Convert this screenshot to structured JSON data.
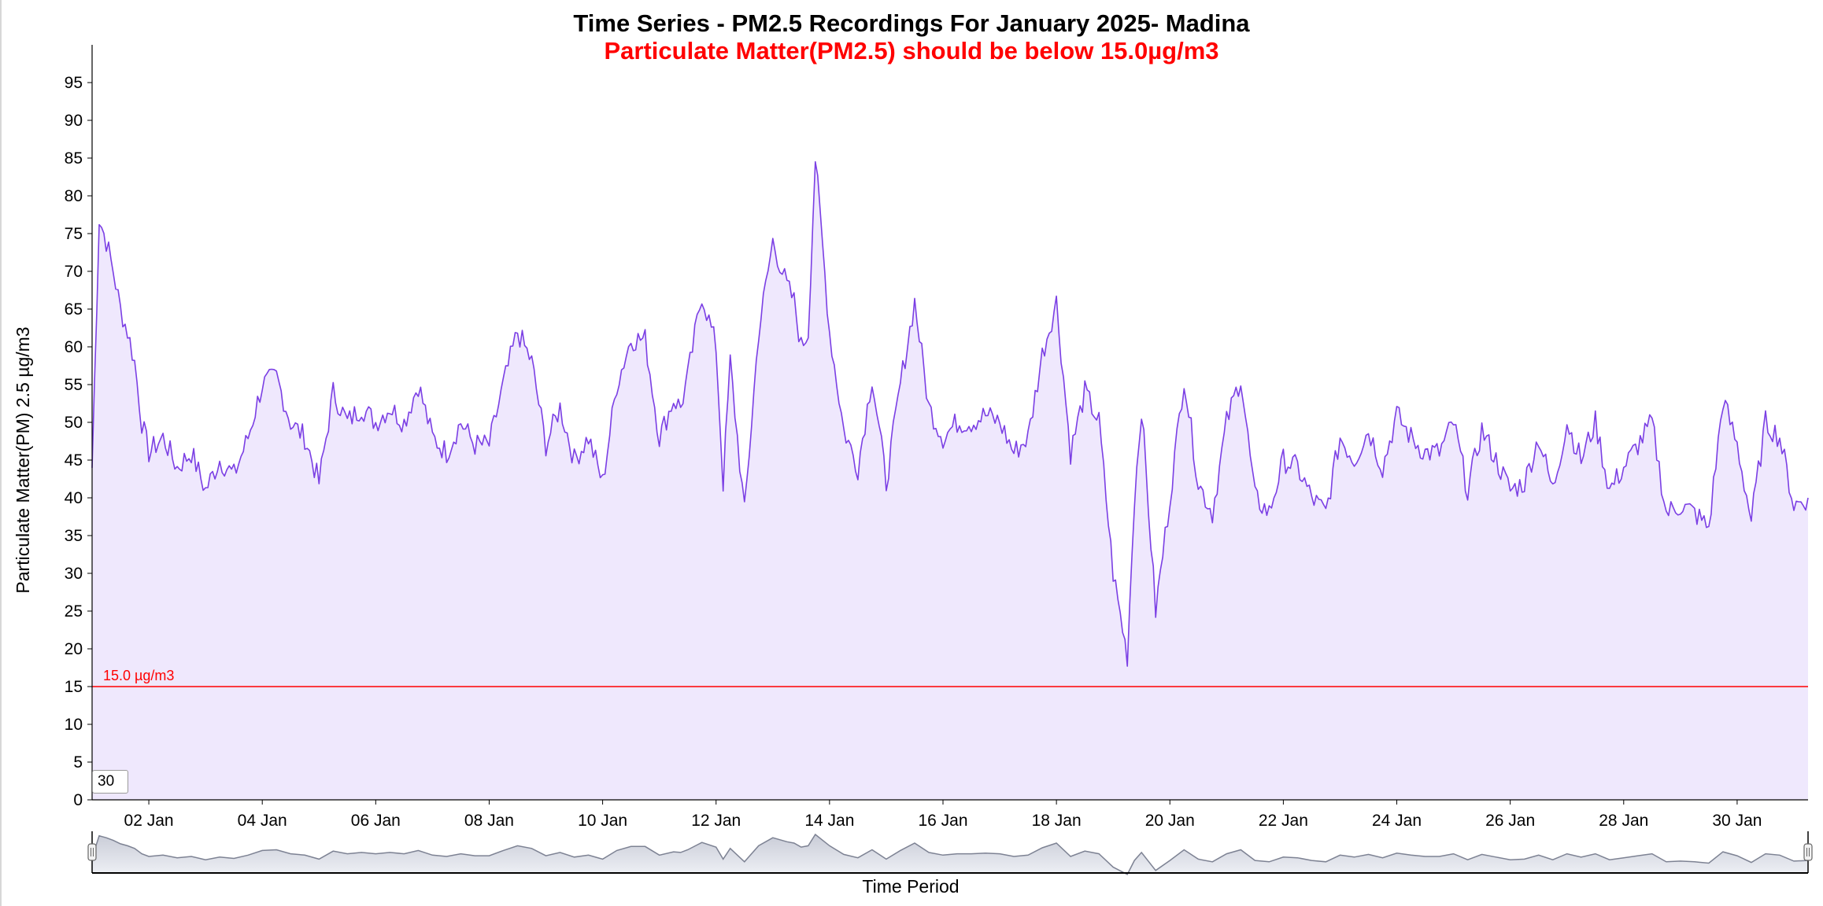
{
  "title": "Time Series - PM2.5 Recordings For January 2025- Madina",
  "subtitle": "Particulate Matter(PM2.5) should be below 15.0µg/m3",
  "smoothing": {
    "value": "30"
  },
  "chart_data": {
    "type": "area",
    "title": "Time Series - PM2.5 Recordings For January 2025- Madina",
    "subtitle": "Particulate Matter(PM2.5) should be below 15.0µg/m3",
    "xlabel": "Time Period",
    "ylabel": "Particulate Matter(PM) 2.5 µg/m3",
    "xlim": [
      "2025-01-01",
      "2025-01-31T06:00"
    ],
    "ylim": [
      0,
      100
    ],
    "yticks": [
      0,
      5,
      10,
      15,
      20,
      25,
      30,
      35,
      40,
      45,
      50,
      55,
      60,
      65,
      70,
      75,
      80,
      85,
      90,
      95
    ],
    "xticks": [
      "02 Jan",
      "04 Jan",
      "06 Jan",
      "08 Jan",
      "10 Jan",
      "12 Jan",
      "14 Jan",
      "16 Jan",
      "18 Jan",
      "20 Jan",
      "22 Jan",
      "24 Jan",
      "26 Jan",
      "28 Jan",
      "30 Jan"
    ],
    "grid": false,
    "threshold": {
      "value": 15.0,
      "label": "15.0 µg/m3",
      "color": "#ff0000"
    },
    "series": [
      {
        "color": "#7b3fe4",
        "fill": "#efe8fd",
        "x": [
          "2025-01-01T00:00",
          "2025-01-01T03:00",
          "2025-01-01T06:00",
          "2025-01-01T09:00",
          "2025-01-01T12:00",
          "2025-01-01T15:00",
          "2025-01-01T18:00",
          "2025-01-01T21:00",
          "2025-01-02T00:00",
          "2025-01-02T06:00",
          "2025-01-02T12:00",
          "2025-01-02T18:00",
          "2025-01-03T00:00",
          "2025-01-03T06:00",
          "2025-01-03T12:00",
          "2025-01-03T18:00",
          "2025-01-04T00:00",
          "2025-01-04T06:00",
          "2025-01-04T12:00",
          "2025-01-04T18:00",
          "2025-01-05T00:00",
          "2025-01-05T06:00",
          "2025-01-05T12:00",
          "2025-01-05T18:00",
          "2025-01-06T00:00",
          "2025-01-06T06:00",
          "2025-01-06T12:00",
          "2025-01-06T18:00",
          "2025-01-07T00:00",
          "2025-01-07T06:00",
          "2025-01-07T12:00",
          "2025-01-07T18:00",
          "2025-01-08T00:00",
          "2025-01-08T06:00",
          "2025-01-08T12:00",
          "2025-01-08T18:00",
          "2025-01-09T00:00",
          "2025-01-09T06:00",
          "2025-01-09T12:00",
          "2025-01-09T18:00",
          "2025-01-10T00:00",
          "2025-01-10T06:00",
          "2025-01-10T12:00",
          "2025-01-10T18:00",
          "2025-01-11T00:00",
          "2025-01-11T06:00",
          "2025-01-11T09:00",
          "2025-01-11T12:00",
          "2025-01-11T18:00",
          "2025-01-12T00:00",
          "2025-01-12T03:00",
          "2025-01-12T06:00",
          "2025-01-12T12:00",
          "2025-01-12T18:00",
          "2025-01-13T00:00",
          "2025-01-13T06:00",
          "2025-01-13T09:00",
          "2025-01-13T12:00",
          "2025-01-13T15:00",
          "2025-01-13T18:00",
          "2025-01-14T00:00",
          "2025-01-14T06:00",
          "2025-01-14T12:00",
          "2025-01-14T18:00",
          "2025-01-15T00:00",
          "2025-01-15T06:00",
          "2025-01-15T12:00",
          "2025-01-15T18:00",
          "2025-01-16T00:00",
          "2025-01-16T06:00",
          "2025-01-16T12:00",
          "2025-01-16T18:00",
          "2025-01-17T00:00",
          "2025-01-17T06:00",
          "2025-01-17T12:00",
          "2025-01-17T18:00",
          "2025-01-18T00:00",
          "2025-01-18T06:00",
          "2025-01-18T12:00",
          "2025-01-18T18:00",
          "2025-01-19T00:00",
          "2025-01-19T06:00",
          "2025-01-19T09:00",
          "2025-01-19T12:00",
          "2025-01-19T18:00",
          "2025-01-20T00:00",
          "2025-01-20T06:00",
          "2025-01-20T12:00",
          "2025-01-20T18:00",
          "2025-01-21T00:00",
          "2025-01-21T06:00",
          "2025-01-21T12:00",
          "2025-01-21T18:00",
          "2025-01-22T00:00",
          "2025-01-22T06:00",
          "2025-01-22T12:00",
          "2025-01-22T18:00",
          "2025-01-23T00:00",
          "2025-01-23T06:00",
          "2025-01-23T12:00",
          "2025-01-23T18:00",
          "2025-01-24T00:00",
          "2025-01-24T06:00",
          "2025-01-24T12:00",
          "2025-01-24T18:00",
          "2025-01-25T00:00",
          "2025-01-25T06:00",
          "2025-01-25T12:00",
          "2025-01-25T18:00",
          "2025-01-26T00:00",
          "2025-01-26T06:00",
          "2025-01-26T12:00",
          "2025-01-26T18:00",
          "2025-01-27T00:00",
          "2025-01-27T06:00",
          "2025-01-27T12:00",
          "2025-01-27T18:00",
          "2025-01-28T00:00",
          "2025-01-28T06:00",
          "2025-01-28T12:00",
          "2025-01-28T18:00",
          "2025-01-29T00:00",
          "2025-01-29T06:00",
          "2025-01-29T12:00",
          "2025-01-29T18:00",
          "2025-01-30T00:00",
          "2025-01-30T06:00",
          "2025-01-30T12:00",
          "2025-01-30T18:00",
          "2025-01-31T00:00",
          "2025-01-31T06:00"
        ],
        "values": [
          44,
          77,
          74,
          70,
          65,
          62,
          58,
          50,
          46,
          48,
          44,
          46,
          41,
          45,
          43,
          48,
          55,
          56,
          50,
          48,
          42,
          54,
          50,
          52,
          50,
          52,
          50,
          55,
          48,
          46,
          50,
          47,
          47,
          55,
          62,
          58,
          47,
          52,
          45,
          48,
          42,
          55,
          61,
          61,
          48,
          53,
          52,
          56,
          67,
          60,
          42,
          58,
          38,
          62,
          74,
          68,
          66,
          60,
          62,
          85,
          62,
          49,
          44,
          56,
          42,
          55,
          66,
          52,
          48,
          50,
          50,
          51,
          50,
          46,
          48,
          59,
          66,
          46,
          54,
          50,
          30,
          19,
          40,
          52,
          25,
          40,
          56,
          42,
          38,
          50,
          56,
          40,
          38,
          45,
          44,
          40,
          38,
          48,
          45,
          49,
          44,
          51,
          48,
          46,
          46,
          50,
          41,
          49,
          45,
          41,
          42,
          48,
          41,
          50,
          45,
          50,
          41,
          44,
          47,
          50,
          38,
          39,
          38,
          36,
          53,
          47,
          37,
          50,
          48,
          39,
          40
        ]
      }
    ]
  }
}
